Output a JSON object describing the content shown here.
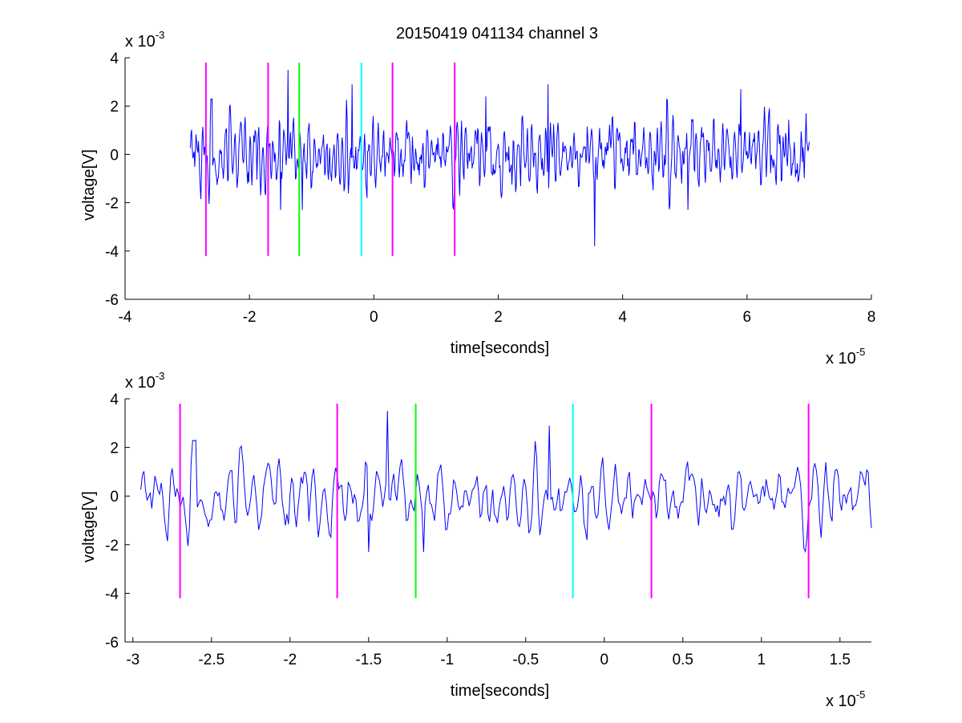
{
  "title": "20150419 041134 channel 3",
  "colors": {
    "signal": "#0000ff",
    "marker_magenta": "#ff00ff",
    "marker_green": "#00ff00",
    "marker_cyan": "#00ffff",
    "axes": "#000000",
    "background": "#ffffff"
  },
  "chart_data": [
    {
      "type": "line",
      "title": "20150419 041134 channel 3",
      "xlabel": "time[seconds]",
      "ylabel": "voltage[V]",
      "x_exponent_base": "x 10",
      "x_exponent": "-5",
      "y_exponent_base": "x 10",
      "y_exponent": "-3",
      "xlim": [
        -4,
        8
      ],
      "ylim": [
        -6,
        4
      ],
      "xticks": [
        -4,
        -2,
        0,
        2,
        4,
        6,
        8
      ],
      "xtick_labels": [
        "-4",
        "-2",
        "0",
        "2",
        "4",
        "6",
        "8"
      ],
      "yticks": [
        -6,
        -4,
        -2,
        0,
        2,
        4
      ],
      "ytick_labels": [
        "-6",
        "-4",
        "-2",
        "0",
        "2",
        "4"
      ],
      "grid": false,
      "series": [
        {
          "color": "#0000ff",
          "x_range": [
            -2.95,
            7.0
          ],
          "samples": 995,
          "y_range_approx": [
            -3.8,
            3.5
          ]
        }
      ],
      "markers": [
        {
          "x": -2.7,
          "y": [
            -4.2,
            3.8
          ],
          "color": "#ff00ff"
        },
        {
          "x": -1.7,
          "y": [
            -4.2,
            3.8
          ],
          "color": "#ff00ff"
        },
        {
          "x": -1.2,
          "y": [
            -4.2,
            3.8
          ],
          "color": "#00ff00"
        },
        {
          "x": -0.2,
          "y": [
            -4.2,
            3.8
          ],
          "color": "#00ffff"
        },
        {
          "x": 0.3,
          "y": [
            -4.2,
            3.8
          ],
          "color": "#ff00ff"
        },
        {
          "x": 1.3,
          "y": [
            -4.2,
            3.8
          ],
          "color": "#ff00ff"
        }
      ]
    },
    {
      "type": "line",
      "xlabel": "time[seconds]",
      "ylabel": "voltage[V]",
      "x_exponent_base": "x 10",
      "x_exponent": "-5",
      "y_exponent_base": "x 10",
      "y_exponent": "-3",
      "xlim": [
        -3.05,
        1.7
      ],
      "ylim": [
        -6,
        4
      ],
      "xticks": [
        -3,
        -2.5,
        -2,
        -1.5,
        -1,
        -0.5,
        0,
        0.5,
        1,
        1.5
      ],
      "xtick_labels": [
        "-3",
        "-2.5",
        "-2",
        "-1.5",
        "-1",
        "-0.5",
        "0",
        "0.5",
        "1",
        "1.5"
      ],
      "yticks": [
        -6,
        -4,
        -2,
        0,
        2,
        4
      ],
      "ytick_labels": [
        "-6",
        "-4",
        "-2",
        "0",
        "2",
        "4"
      ],
      "grid": false,
      "series": [
        {
          "color": "#0000ff",
          "x_range": [
            -2.95,
            1.7
          ],
          "samples": 465,
          "y_range_approx": [
            -2.3,
            3.5
          ]
        }
      ],
      "markers": [
        {
          "x": -2.7,
          "y": [
            -4.2,
            3.8
          ],
          "color": "#ff00ff"
        },
        {
          "x": -1.7,
          "y": [
            -4.2,
            3.8
          ],
          "color": "#ff00ff"
        },
        {
          "x": -1.2,
          "y": [
            -4.2,
            3.8
          ],
          "color": "#00ff00"
        },
        {
          "x": -0.2,
          "y": [
            -4.2,
            3.8
          ],
          "color": "#00ffff"
        },
        {
          "x": 0.3,
          "y": [
            -4.2,
            3.8
          ],
          "color": "#ff00ff"
        },
        {
          "x": 1.3,
          "y": [
            -4.2,
            3.8
          ],
          "color": "#ff00ff"
        }
      ]
    }
  ]
}
